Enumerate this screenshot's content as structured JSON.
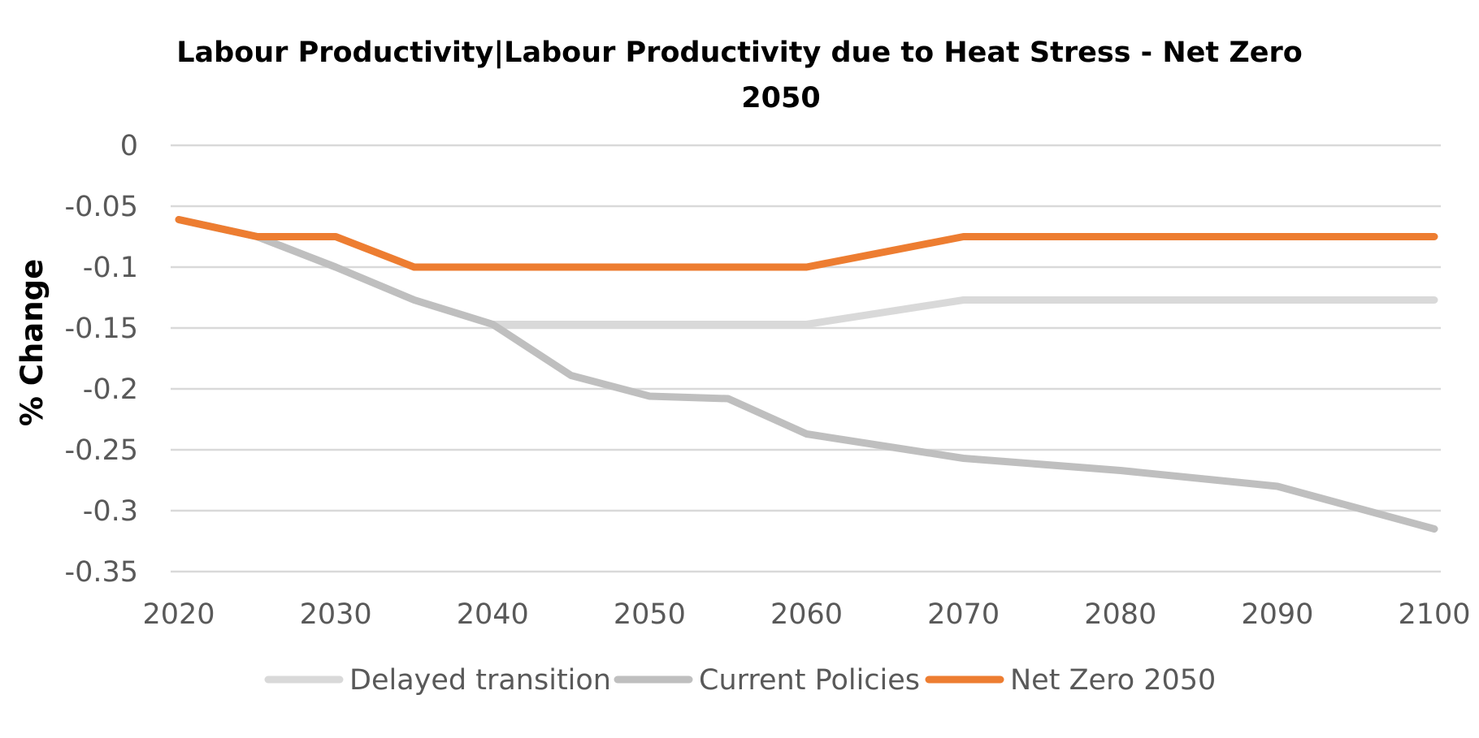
{
  "chart_data": {
    "type": "line",
    "title_line1": "Labour Productivity|Labour Productivity due to Heat Stress - Net Zero",
    "title_line2": "2050",
    "ylabel": "% Change",
    "xlabel": "",
    "x": [
      2020,
      2025,
      2030,
      2035,
      2040,
      2045,
      2050,
      2055,
      2060,
      2070,
      2080,
      2090,
      2100
    ],
    "xlim": [
      2020,
      2100
    ],
    "ylim": [
      -0.35,
      0
    ],
    "x_ticks": [
      "2020",
      "2030",
      "2040",
      "2050",
      "2060",
      "2070",
      "2080",
      "2090",
      "2100"
    ],
    "y_ticks": [
      "0",
      "-0.05",
      "-0.1",
      "-0.15",
      "-0.2",
      "-0.25",
      "-0.3",
      "-0.35"
    ],
    "y_tick_values": [
      0,
      -0.05,
      -0.1,
      -0.15,
      -0.2,
      -0.25,
      -0.3,
      -0.35
    ],
    "grid": true,
    "legend_position": "bottom",
    "series": [
      {
        "name": "Delayed transition",
        "color": "#d9d9d9",
        "values": [
          -0.061,
          -0.075,
          -0.1,
          -0.127,
          -0.147,
          -0.147,
          -0.147,
          -0.147,
          -0.147,
          -0.127,
          -0.127,
          -0.127,
          -0.127
        ]
      },
      {
        "name": "Current Policies",
        "color": "#bfbfbf",
        "values": [
          -0.061,
          -0.075,
          -0.1,
          -0.127,
          -0.147,
          -0.189,
          -0.206,
          -0.208,
          -0.237,
          -0.257,
          -0.267,
          -0.28,
          -0.315
        ]
      },
      {
        "name": "Net Zero 2050",
        "color": "#ed7d31",
        "values": [
          -0.061,
          -0.075,
          -0.075,
          -0.1,
          -0.1,
          -0.1,
          -0.1,
          -0.1,
          -0.1,
          -0.075,
          -0.075,
          -0.075,
          -0.075
        ]
      }
    ]
  }
}
